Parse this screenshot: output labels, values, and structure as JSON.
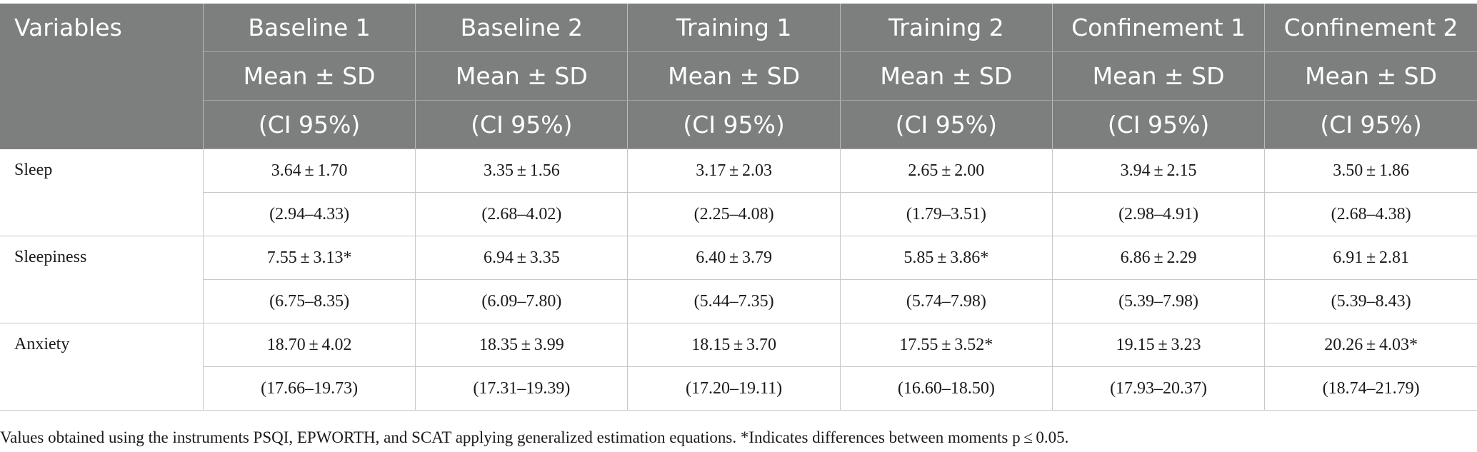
{
  "table": {
    "header": {
      "variables_label": "Variables",
      "columns": [
        "Baseline 1",
        "Baseline 2",
        "Training 1",
        "Training 2",
        "Confinement 1",
        "Confinement 2"
      ],
      "stat_label": "Mean ± SD",
      "ci_label": "(CI 95%)"
    },
    "rows": [
      {
        "label": "Sleep",
        "means": [
          "3.64 ± 1.70",
          "3.35 ± 1.56",
          "3.17 ± 2.03",
          "2.65 ± 2.00",
          "3.94 ± 2.15",
          "3.50 ± 1.86"
        ],
        "cis": [
          "(2.94–4.33)",
          "(2.68–4.02)",
          "(2.25–4.08)",
          "(1.79–3.51)",
          "(2.98–4.91)",
          "(2.68–4.38)"
        ]
      },
      {
        "label": "Sleepiness",
        "means": [
          "7.55 ± 3.13*",
          "6.94 ± 3.35",
          "6.40 ± 3.79",
          "5.85 ± 3.86*",
          "6.86 ± 2.29",
          "6.91 ± 2.81"
        ],
        "cis": [
          "(6.75–8.35)",
          "(6.09–7.80)",
          "(5.44–7.35)",
          "(5.74–7.98)",
          "(5.39–7.98)",
          "(5.39–8.43)"
        ]
      },
      {
        "label": "Anxiety",
        "means": [
          "18.70 ± 4.02",
          "18.35 ± 3.99",
          "18.15 ± 3.70",
          "17.55 ± 3.52*",
          "19.15 ± 3.23",
          "20.26 ± 4.03*"
        ],
        "cis": [
          "(17.66–19.73)",
          "(17.31–19.39)",
          "(17.20–19.11)",
          "(16.60–18.50)",
          "(17.93–20.37)",
          "(18.74–21.79)"
        ]
      }
    ]
  },
  "footnote": "Values obtained using the instruments PSQI, EPWORTH, and SCAT applying generalized estimation equations. *Indicates differences between moments p ≤ 0.05.",
  "colors": {
    "header_bg": "#7d7f7e",
    "header_text": "#ffffff",
    "grid_line": "#c8c8c8"
  }
}
